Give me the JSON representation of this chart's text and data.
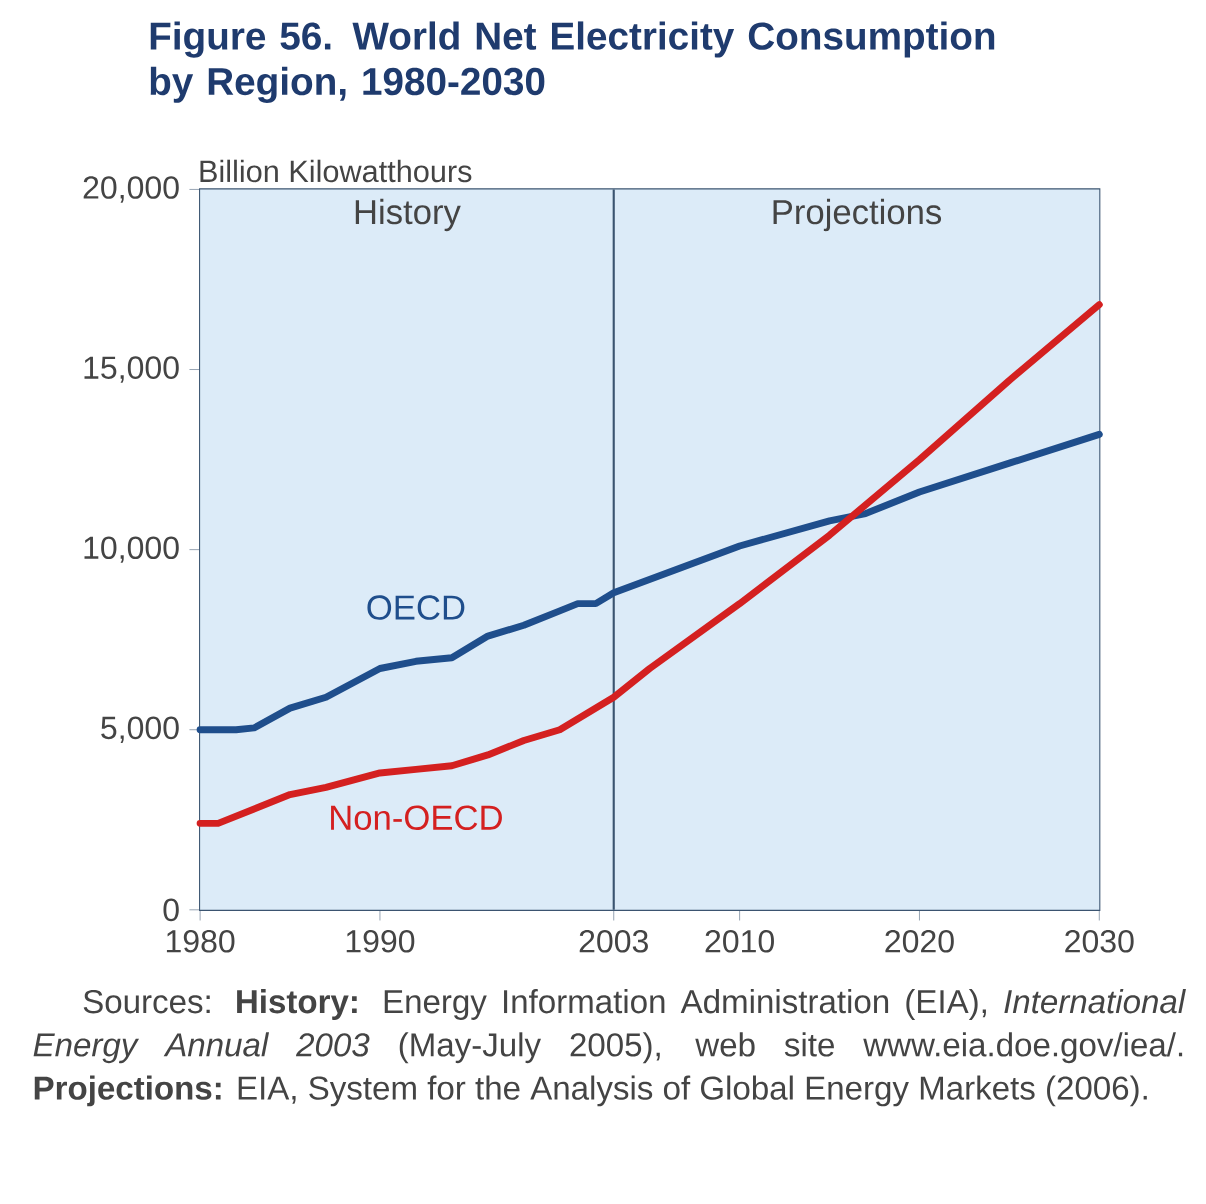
{
  "chart_data": {
    "type": "line",
    "title": "Figure 56.  World Net Electricity Consumption by Region, 1980-2030",
    "ylabel": "Billion Kilowatthours",
    "xlim": [
      1980,
      2030
    ],
    "xticks": [
      1980,
      1990,
      2003,
      2010,
      2020,
      2030
    ],
    "ylim": [
      0,
      20000
    ],
    "yticks": [
      {
        "value": 0,
        "label": "0"
      },
      {
        "value": 5000,
        "label": "5,000"
      },
      {
        "value": 10000,
        "label": "10,000"
      },
      {
        "value": 15000,
        "label": "15,000"
      },
      {
        "value": 20000,
        "label": "20,000"
      }
    ],
    "series": [
      {
        "name": "OECD",
        "color": "#1f4e8c",
        "x": [
          1980,
          1982,
          1983,
          1985,
          1987,
          1990,
          1992,
          1994,
          1996,
          1998,
          2000,
          2001,
          2002,
          2003,
          2010,
          2015,
          2017,
          2020,
          2025,
          2030
        ],
        "values": [
          5000,
          5000,
          5050,
          5600,
          5900,
          6700,
          6900,
          7000,
          7600,
          7900,
          8300,
          8500,
          8500,
          8800,
          10100,
          10800,
          11000,
          11600,
          12400,
          13200
        ]
      },
      {
        "name": "Non-OECD",
        "color": "#d42020",
        "x": [
          1980,
          1981,
          1983,
          1985,
          1987,
          1990,
          1992,
          1994,
          1996,
          1998,
          2000,
          2001,
          2002,
          2003,
          2005,
          2010,
          2015,
          2020,
          2025,
          2030
        ],
        "values": [
          2400,
          2400,
          2800,
          3200,
          3400,
          3800,
          3900,
          4000,
          4300,
          4700,
          5000,
          5300,
          5600,
          5900,
          6700,
          8500,
          10400,
          12500,
          14700,
          16800
        ]
      }
    ],
    "bands": [
      {
        "axis": "x",
        "from": 1980,
        "to": 2003,
        "label": "History",
        "color": "#dcebf8"
      },
      {
        "axis": "x",
        "from": 2003,
        "to": 2030,
        "label": "Projections",
        "color": "#dcebf8"
      }
    ],
    "ref_lines": [
      {
        "axis": "x",
        "value": 2003,
        "color": "#3b5470"
      }
    ],
    "legend": false,
    "marker": "none",
    "line_style": "solid",
    "annotations": [
      "Sources: **History:** Energy Information Administration (EIA), *International Energy Annual 2003* (May-July 2005), web site www.eia.doe.gov/iea/. **Projections:** EIA, System for the Analysis of Global Energy Markets (2006)."
    ]
  }
}
